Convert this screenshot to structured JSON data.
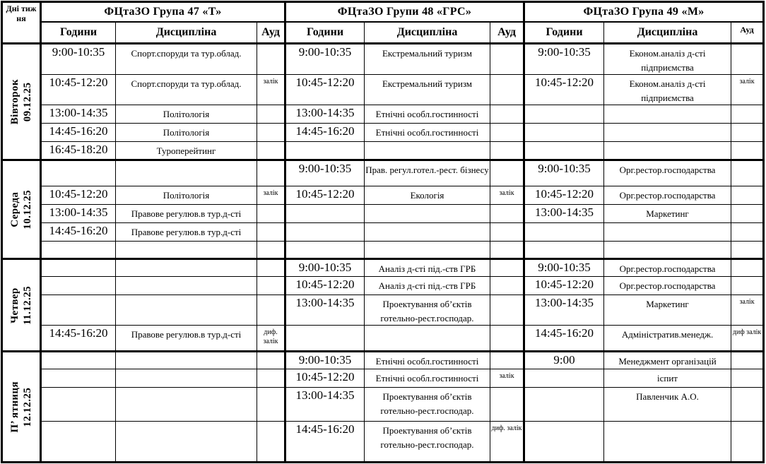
{
  "header": {
    "day_col": "Дні тиж ня",
    "groups": [
      {
        "title": "ФЦтаЗО  Група 47 «Т»",
        "col_time": "Години",
        "col_subject": "Дисципліна",
        "col_room": "Ауд"
      },
      {
        "title": "ФЦтаЗО  Групи 48 «ГРС»",
        "col_time": "Години",
        "col_subject": "Дисципліна",
        "col_room": "Ауд"
      },
      {
        "title": "ФЦтаЗО  Група 49 «М»",
        "col_time": "Години",
        "col_subject": "Дисципліна",
        "col_room": "Ауд"
      }
    ]
  },
  "days": [
    {
      "name": "Вівторок",
      "date": "09.12.25",
      "rows": [
        {
          "cells": [
            {
              "time": "9:00-10:35",
              "subject": "Спорт.споруди та тур.облад.",
              "room": ""
            },
            {
              "time": "9:00-10:35",
              "subject": "Екстремальний туризм",
              "room": ""
            },
            {
              "time": "9:00-10:35",
              "subject": "Економ.аналіз д-сті підприємства",
              "room": ""
            }
          ]
        },
        {
          "cells": [
            {
              "time": "10:45-12:20",
              "subject": "Спорт.споруди та тур.облад.",
              "room": "залік"
            },
            {
              "time": "10:45-12:20",
              "subject": "Екстремальний туризм",
              "room": ""
            },
            {
              "time": "10:45-12:20",
              "subject": "Економ.аналіз д-сті підприємства",
              "room": "залік"
            }
          ]
        },
        {
          "cells": [
            {
              "time": "13:00-14:35",
              "subject": "Політологія",
              "room": ""
            },
            {
              "time": "13:00-14:35",
              "subject": "Етнічні особл.гостинності",
              "room": ""
            },
            {
              "time": "",
              "subject": "",
              "room": ""
            }
          ]
        },
        {
          "cells": [
            {
              "time": "14:45-16:20",
              "subject": "Політологія",
              "room": ""
            },
            {
              "time": "14:45-16:20",
              "subject": "Етнічні особл.гостинності",
              "room": ""
            },
            {
              "time": "",
              "subject": "",
              "room": ""
            }
          ]
        },
        {
          "cells": [
            {
              "time": "16:45-18:20",
              "subject": "Туроперейтинг",
              "room": ""
            },
            {
              "time": "",
              "subject": "",
              "room": ""
            },
            {
              "time": "",
              "subject": "",
              "room": ""
            }
          ]
        }
      ]
    },
    {
      "name": "Середа",
      "date": "10.12.25",
      "rows": [
        {
          "cells": [
            {
              "time": "",
              "subject": "",
              "room": ""
            },
            {
              "time": "9:00-10:35",
              "subject": "Прав. регул.готел.-рест. бізнесу",
              "room": ""
            },
            {
              "time": "9:00-10:35",
              "subject": "Орг.рестор.господарства",
              "room": ""
            }
          ]
        },
        {
          "cells": [
            {
              "time": "10:45-12:20",
              "subject": "Політологія",
              "room": "залік"
            },
            {
              "time": "10:45-12:20",
              "subject": "Екологія",
              "room": "залік"
            },
            {
              "time": "10:45-12:20",
              "subject": "Орг.рестор.господарства",
              "room": ""
            }
          ]
        },
        {
          "cells": [
            {
              "time": "13:00-14:35",
              "subject": "Правове регулюв.в тур.д-сті",
              "room": ""
            },
            {
              "time": "",
              "subject": "",
              "room": ""
            },
            {
              "time": "13:00-14:35",
              "subject": "Маркетинг",
              "room": ""
            }
          ]
        },
        {
          "cells": [
            {
              "time": "14:45-16:20",
              "subject": "Правове регулюв.в тур.д-сті",
              "room": ""
            },
            {
              "time": "",
              "subject": "",
              "room": ""
            },
            {
              "time": "",
              "subject": "",
              "room": ""
            }
          ]
        },
        {
          "cells": [
            {
              "time": "",
              "subject": "",
              "room": ""
            },
            {
              "time": "",
              "subject": "",
              "room": ""
            },
            {
              "time": "",
              "subject": "",
              "room": ""
            }
          ]
        }
      ]
    },
    {
      "name": "Четвер",
      "date": "11.12.25",
      "rows": [
        {
          "cells": [
            {
              "time": "",
              "subject": "",
              "room": ""
            },
            {
              "time": "9:00-10:35",
              "subject": "Аналіз д-сті під.-ств ГРБ",
              "room": ""
            },
            {
              "time": "9:00-10:35",
              "subject": "Орг.рестор.господарства",
              "room": ""
            }
          ]
        },
        {
          "cells": [
            {
              "time": "",
              "subject": "",
              "room": ""
            },
            {
              "time": "10:45-12:20",
              "subject": "Аналіз д-сті під.-ств ГРБ",
              "room": ""
            },
            {
              "time": "10:45-12:20",
              "subject": "Орг.рестор.господарства",
              "room": ""
            }
          ]
        },
        {
          "cells": [
            {
              "time": "",
              "subject": "",
              "room": ""
            },
            {
              "time": "13:00-14:35",
              "subject": "Проектування об’єктів готельно-рест.господар.",
              "room": ""
            },
            {
              "time": "13:00-14:35",
              "subject": "Маркетинг",
              "room": "залік"
            }
          ]
        },
        {
          "cells": [
            {
              "time": "14:45-16:20",
              "subject": "Правове регулюв.в тур.д-сті",
              "room": "диф. залік"
            },
            {
              "time": "",
              "subject": "",
              "room": ""
            },
            {
              "time": "14:45-16:20",
              "subject": "Адміністратив.менедж.",
              "room": "диф залік"
            }
          ]
        }
      ]
    },
    {
      "name": "П’ ятниця",
      "date": "12.12.25",
      "rows": [
        {
          "cells": [
            {
              "time": "",
              "subject": "",
              "room": ""
            },
            {
              "time": "9:00-10:35",
              "subject": "Етнічні особл.гостинності",
              "room": ""
            },
            {
              "time": "9:00",
              "subject": "Менеджмент організацій",
              "room": ""
            }
          ]
        },
        {
          "cells": [
            {
              "time": "",
              "subject": "",
              "room": ""
            },
            {
              "time": "10:45-12:20",
              "subject": "Етнічні особл.гостинності",
              "room": "залік"
            },
            {
              "time": "",
              "subject": "іспит",
              "room": ""
            }
          ]
        },
        {
          "cells": [
            {
              "time": "",
              "subject": "",
              "room": ""
            },
            {
              "time": "13:00-14:35",
              "subject": "Проектування об’єктів готельно-рест.господар.",
              "room": ""
            },
            {
              "time": "",
              "subject": "Павленчик А.О.",
              "room": ""
            }
          ]
        },
        {
          "cells": [
            {
              "time": "",
              "subject": "",
              "room": ""
            },
            {
              "time": "14:45-16:20",
              "subject": "Проектування об’єктів готельно-рест.господар.",
              "room": "диф. залік"
            },
            {
              "time": "",
              "subject": "",
              "room": ""
            }
          ]
        }
      ]
    }
  ]
}
